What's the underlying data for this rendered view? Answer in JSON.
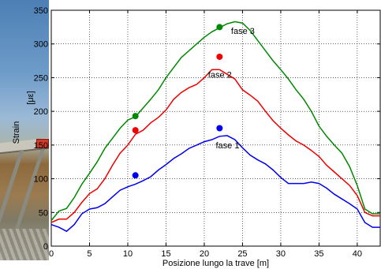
{
  "chart_data": {
    "type": "line",
    "title": "",
    "xlabel": "Posizione lungo la trave  [m]",
    "ylabel_prefix": "Strain",
    "ylabel_unit": "[με]",
    "xlim": [
      0,
      43
    ],
    "ylim": [
      0,
      350
    ],
    "xticks": [
      0,
      5,
      10,
      15,
      20,
      25,
      30,
      35,
      40
    ],
    "yticks": [
      0,
      50,
      100,
      150,
      200,
      250,
      300,
      350
    ],
    "grid": true,
    "series": [
      {
        "label": "fase 1",
        "color": "#0000ee",
        "x": [
          0,
          1,
          2,
          3,
          4,
          5,
          6,
          7,
          8,
          9,
          10,
          11,
          12,
          13,
          14,
          15,
          16,
          17,
          18,
          19,
          20,
          21,
          22,
          23,
          24,
          25,
          26,
          27,
          28,
          29,
          30,
          31,
          32,
          33,
          34,
          35,
          36,
          37,
          38,
          39,
          40,
          41,
          42,
          43
        ],
        "y": [
          32,
          28,
          22,
          32,
          48,
          55,
          57,
          63,
          73,
          83,
          88,
          92,
          97,
          103,
          113,
          121,
          130,
          137,
          145,
          150,
          155,
          158,
          163,
          164,
          158,
          146,
          135,
          128,
          122,
          113,
          102,
          93,
          93,
          93,
          95,
          93,
          86,
          77,
          70,
          63,
          55,
          35,
          28,
          28
        ],
        "marker": {
          "x": 11,
          "y": 105
        }
      },
      {
        "label": "fase 2",
        "color": "#ee0000",
        "x": [
          0,
          1,
          2,
          3,
          4,
          5,
          6,
          7,
          8,
          9,
          10,
          11,
          12,
          13,
          14,
          15,
          16,
          17,
          18,
          19,
          20,
          21,
          22,
          23,
          24,
          25,
          26,
          27,
          28,
          29,
          30,
          31,
          32,
          33,
          34,
          35,
          36,
          37,
          38,
          39,
          40,
          41,
          42,
          43
        ],
        "y": [
          35,
          40,
          40,
          50,
          65,
          78,
          85,
          100,
          120,
          138,
          150,
          166,
          172,
          183,
          191,
          202,
          218,
          228,
          235,
          240,
          250,
          262,
          262,
          255,
          248,
          232,
          224,
          215,
          200,
          186,
          175,
          165,
          156,
          150,
          142,
          133,
          120,
          110,
          100,
          90,
          75,
          50,
          45,
          45
        ],
        "marker": {
          "x": 11,
          "y": 172
        }
      },
      {
        "label": "fase 3",
        "color": "#008800",
        "x": [
          0,
          1,
          2,
          3,
          4,
          5,
          6,
          7,
          8,
          9,
          10,
          11,
          12,
          13,
          14,
          15,
          16,
          17,
          18,
          19,
          20,
          21,
          22,
          23,
          24,
          25,
          26,
          27,
          28,
          29,
          30,
          31,
          32,
          33,
          34,
          35,
          36,
          37,
          38,
          39,
          40,
          41,
          42,
          43
        ],
        "y": [
          38,
          52,
          56,
          72,
          92,
          108,
          125,
          145,
          160,
          175,
          187,
          192,
          205,
          218,
          232,
          250,
          265,
          280,
          290,
          300,
          310,
          318,
          324,
          330,
          333,
          331,
          320,
          305,
          290,
          275,
          262,
          248,
          232,
          218,
          200,
          178,
          163,
          150,
          138,
          118,
          90,
          55,
          48,
          48
        ],
        "marker": {
          "x": 11,
          "y": 193
        }
      }
    ],
    "extra_markers": [
      {
        "series": "fase 1",
        "x": 22,
        "y": 175
      },
      {
        "series": "fase 2",
        "x": 22,
        "y": 281
      },
      {
        "series": "fase 3",
        "x": 22,
        "y": 325
      }
    ],
    "series_label_positions": [
      {
        "label": "fase 1",
        "x": 21.5,
        "y": 145
      },
      {
        "label": "fase 2",
        "x": 20.5,
        "y": 250
      },
      {
        "label": "fase 3",
        "x": 23.5,
        "y": 315
      }
    ]
  }
}
